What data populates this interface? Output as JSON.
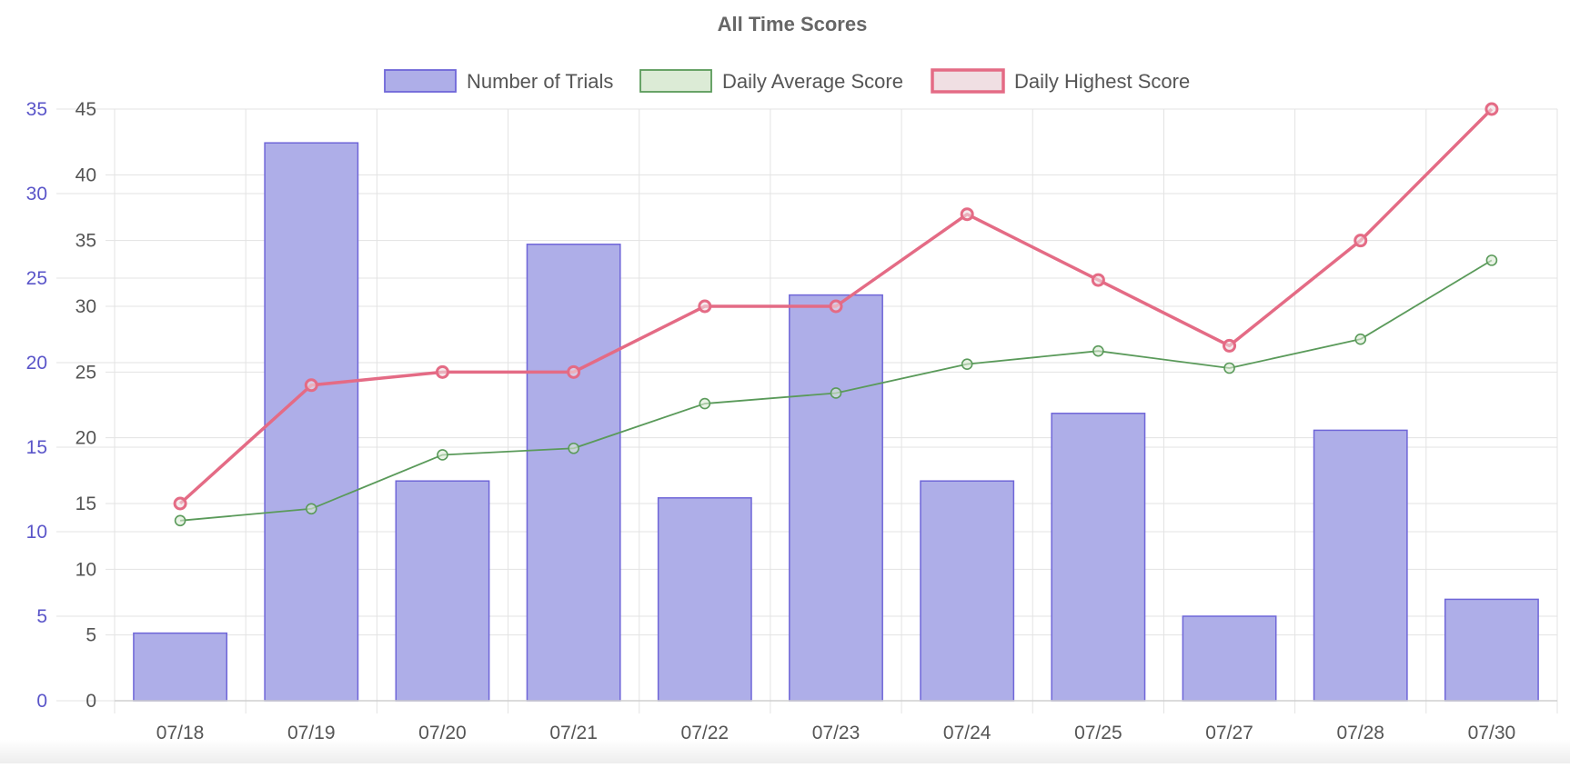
{
  "chart_data": {
    "type": "bar",
    "title": "All Time Scores",
    "categories": [
      "07/18",
      "07/19",
      "07/20",
      "07/21",
      "07/22",
      "07/23",
      "07/24",
      "07/25",
      "07/27",
      "07/28",
      "07/30"
    ],
    "legend_position": "top",
    "grid": true,
    "y_left": {
      "ticks": [
        0,
        5,
        10,
        15,
        20,
        25,
        30,
        35
      ],
      "ylim": [
        0,
        35
      ],
      "color": "#5a55c9"
    },
    "y_right": {
      "ticks": [
        0,
        5,
        10,
        15,
        20,
        25,
        30,
        35,
        40,
        45
      ],
      "ylim": [
        0,
        45
      ]
    },
    "series": [
      {
        "name": "Number of Trials",
        "type": "bar",
        "axis": "left",
        "color": "#6f66d8",
        "fill": "#aeaee8",
        "values": [
          4,
          33,
          13,
          27,
          12,
          24,
          13,
          17,
          5,
          16,
          6
        ]
      },
      {
        "name": "Daily Average Score",
        "type": "line",
        "axis": "right",
        "color": "#5a9a5a",
        "fill": "#dcebd6",
        "values": [
          13.7,
          14.6,
          18.7,
          19.2,
          22.6,
          23.4,
          25.6,
          26.6,
          25.3,
          27.5,
          33.5
        ]
      },
      {
        "name": "Daily Highest Score",
        "type": "line",
        "axis": "right",
        "color": "#e46b85",
        "fill": "#f0dfe3",
        "values": [
          15,
          24,
          25,
          25,
          30,
          30,
          37,
          32,
          27,
          35,
          45
        ]
      }
    ]
  }
}
